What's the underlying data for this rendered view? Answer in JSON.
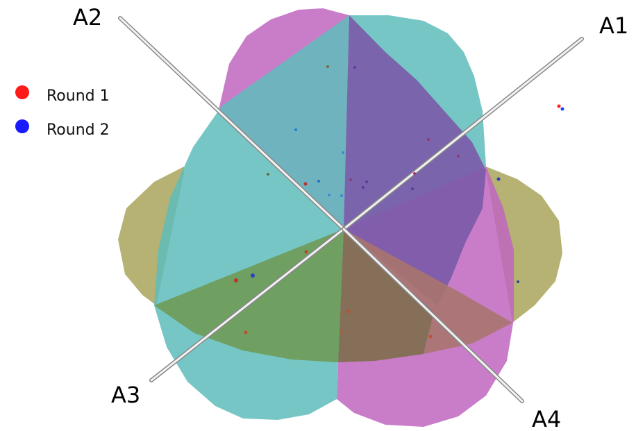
{
  "axes": [
    {
      "id": "a1",
      "label": "A1"
    },
    {
      "id": "a2",
      "label": "A2"
    },
    {
      "id": "a3",
      "label": "A3"
    },
    {
      "id": "a4",
      "label": "A4"
    }
  ],
  "legend": [
    {
      "label": "Round 1",
      "color": "#ff1a1a"
    },
    {
      "label": "Round 2",
      "color": "#1a1aff"
    }
  ],
  "regions": {
    "olive": "#a8a55a",
    "teal": "#5fbcbc",
    "magenta": "#c066c0",
    "purple": "#7a5aa8",
    "green": "#6e9a55",
    "brown": "#8a7a52",
    "mauve": "#b07a7a"
  }
}
